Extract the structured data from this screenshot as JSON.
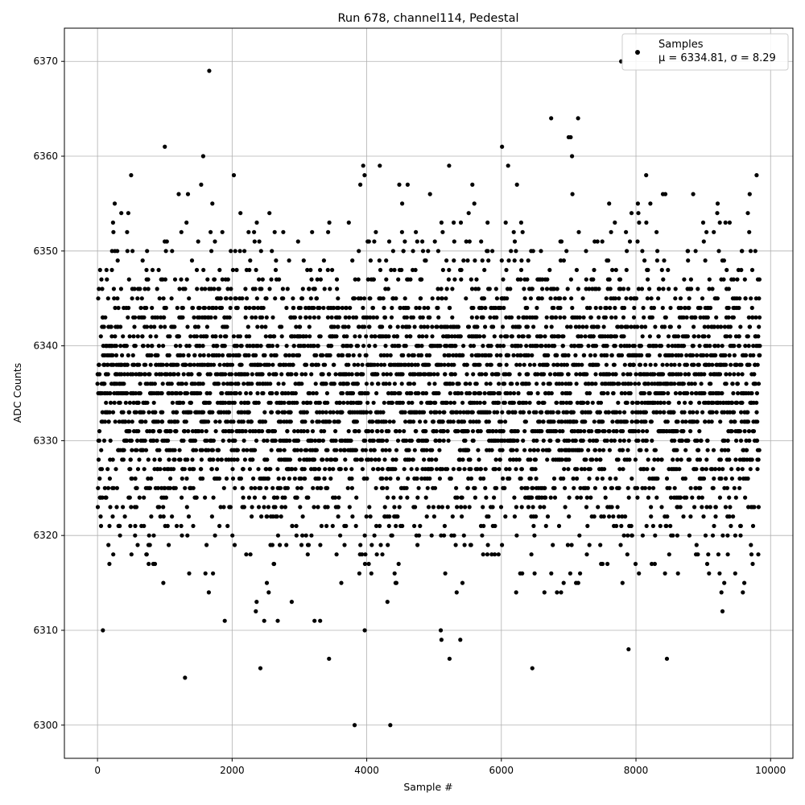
{
  "chart_data": {
    "type": "scatter",
    "title": "Run 678, channel114, Pedestal",
    "xlabel": "Sample #",
    "ylabel": "ADC Counts",
    "xlim": [
      -492,
      10332
    ],
    "ylim": [
      6296.5,
      6373.5
    ],
    "xticks": [
      0,
      2000,
      4000,
      6000,
      8000,
      10000
    ],
    "yticks": [
      6300,
      6310,
      6320,
      6330,
      6340,
      6350,
      6360,
      6370
    ],
    "grid": true,
    "legend_position": "top-right",
    "marker_color": "#000000",
    "series": [
      {
        "name": "Samples",
        "stats_label": "μ = 6334.81, σ = 8.29",
        "mean": 6334.81,
        "sigma": 8.29,
        "x_range": [
          0,
          9840
        ],
        "outliers": [
          [
            80,
            6310
          ],
          [
            1300,
            6305
          ],
          [
            1660,
            6369
          ],
          [
            2420,
            6306
          ],
          [
            3440,
            6307
          ],
          [
            3820,
            6300
          ],
          [
            4350,
            6300
          ],
          [
            6460,
            6306
          ],
          [
            7780,
            6370
          ],
          [
            7890,
            6308
          ],
          [
            8460,
            6307
          ],
          [
            5230,
            6307
          ],
          [
            5100,
            6310
          ],
          [
            5110,
            6309
          ],
          [
            5390,
            6309
          ],
          [
            3970,
            6310
          ],
          [
            1000,
            6361
          ],
          [
            6010,
            6361
          ],
          [
            6740,
            6364
          ],
          [
            7140,
            6364
          ],
          [
            1570,
            6360
          ],
          [
            7000,
            6362
          ],
          [
            7030,
            6362
          ],
          [
            7050,
            6360
          ]
        ]
      }
    ]
  }
}
